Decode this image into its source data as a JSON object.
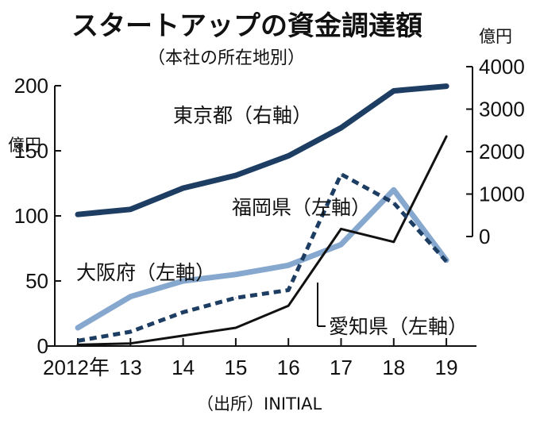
{
  "title": "スタートアップの資金調達額",
  "subtitle": "（本社の所在地別）",
  "source": "（出所）INITIAL",
  "left_unit": "億円",
  "right_unit": "億円",
  "chart_data": {
    "type": "line",
    "title": "スタートアップの資金調達額",
    "subtitle": "（本社の所在地別）",
    "categories": [
      "2012年",
      "13",
      "14",
      "15",
      "16",
      "17",
      "18",
      "19"
    ],
    "x": [
      2012,
      2013,
      2014,
      2015,
      2016,
      2017,
      2018,
      2019
    ],
    "left_axis": {
      "unit": "億円",
      "ylim": [
        0,
        200
      ],
      "ticks": [
        0,
        50,
        100,
        150,
        200
      ]
    },
    "right_axis": {
      "unit": "億円",
      "ylim": [
        0,
        4000
      ],
      "ticks": [
        0,
        1000,
        2000,
        3000,
        4000
      ]
    },
    "series": [
      {
        "name": "東京都",
        "label": "東京都（右軸）",
        "axis": "right",
        "color": "#1d3d63",
        "style": "solid-thick",
        "values": [
          520,
          640,
          1140,
          1440,
          1900,
          2560,
          3430,
          3540
        ]
      },
      {
        "name": "福岡県",
        "label": "福岡県（左軸）",
        "axis": "left",
        "color": "#1d3d63",
        "style": "dashed",
        "values": [
          4,
          11,
          26,
          37,
          43,
          132,
          110,
          65
        ]
      },
      {
        "name": "大阪府",
        "label": "大阪府（左軸）",
        "axis": "left",
        "color": "#86a8cf",
        "style": "solid-thick",
        "values": [
          14,
          38,
          50,
          55,
          62,
          78,
          120,
          66
        ]
      },
      {
        "name": "愛知県",
        "label": "愛知県（左軸）",
        "axis": "left",
        "color": "#111111",
        "style": "solid-thin",
        "values": [
          1,
          2,
          8,
          14,
          31,
          90,
          80,
          161
        ]
      }
    ],
    "legend": "inline labels",
    "grid": false
  }
}
